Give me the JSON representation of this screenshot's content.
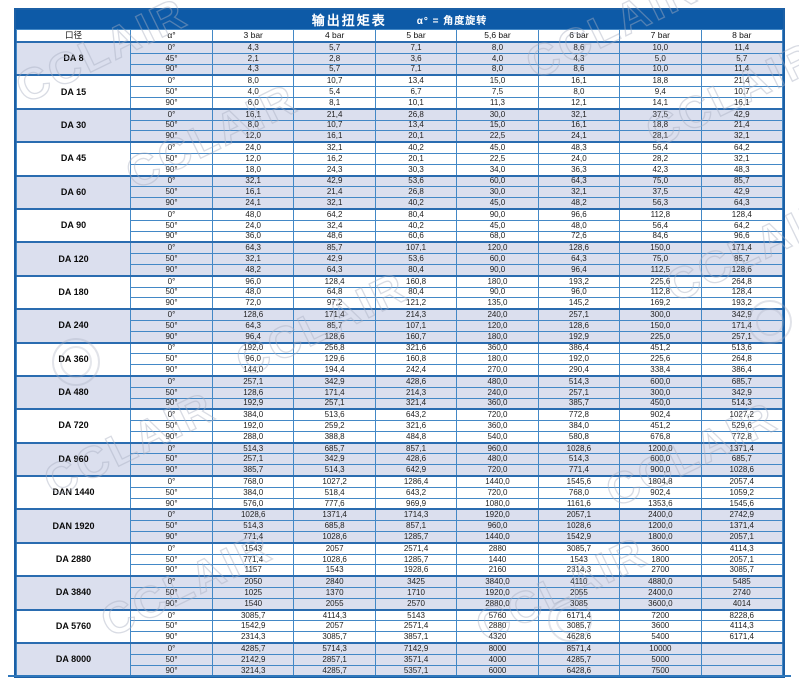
{
  "watermark": {
    "text": "CCLAIR"
  },
  "colors": {
    "title_bar_bg": "#0d5aa7",
    "outer_border": "#1b5fa5",
    "inner_border": "#4388c6",
    "shaded_row_bg": "#dbdfee",
    "title_text": "#ffffff"
  },
  "table": {
    "title": "输出扭矩表",
    "legend": "α° = 角度旋转",
    "columns": [
      "口径",
      "α°",
      "3 bar",
      "4 bar",
      "5 bar",
      "5,6 bar",
      "6 bar",
      "7 bar",
      "8 bar"
    ],
    "groups": [
      {
        "label": "DA 8",
        "rows": [
          {
            "a": "0°",
            "v": [
              "4,3",
              "5,7",
              "7,1",
              "8,0",
              "8,6",
              "10,0",
              "11,4"
            ]
          },
          {
            "a": "45°",
            "v": [
              "2,1",
              "2,8",
              "3,6",
              "4,0",
              "4,3",
              "5,0",
              "5,7"
            ]
          },
          {
            "a": "90°",
            "v": [
              "4,3",
              "5,7",
              "7,1",
              "8,0",
              "8,6",
              "10,0",
              "11,4"
            ]
          }
        ]
      },
      {
        "label": "DA 15",
        "rows": [
          {
            "a": "0°",
            "v": [
              "8,0",
              "10,7",
              "13,4",
              "15,0",
              "16,1",
              "18,8",
              "21,4"
            ]
          },
          {
            "a": "50°",
            "v": [
              "4,0",
              "5,4",
              "6,7",
              "7,5",
              "8,0",
              "9,4",
              "10,7"
            ]
          },
          {
            "a": "90°",
            "v": [
              "6,0",
              "8,1",
              "10,1",
              "11,3",
              "12,1",
              "14,1",
              "16,1"
            ]
          }
        ]
      },
      {
        "label": "DA 30",
        "rows": [
          {
            "a": "0°",
            "v": [
              "16,1",
              "21,4",
              "26,8",
              "30,0",
              "32,1",
              "37,5",
              "42,9"
            ]
          },
          {
            "a": "50°",
            "v": [
              "8,0",
              "10,7",
              "13,4",
              "15,0",
              "16,1",
              "18,8",
              "21,4"
            ]
          },
          {
            "a": "90°",
            "v": [
              "12,0",
              "16,1",
              "20,1",
              "22,5",
              "24,1",
              "28,1",
              "32,1"
            ]
          }
        ]
      },
      {
        "label": "DA 45",
        "rows": [
          {
            "a": "0°",
            "v": [
              "24,0",
              "32,1",
              "40,2",
              "45,0",
              "48,3",
              "56,4",
              "64,2"
            ]
          },
          {
            "a": "50°",
            "v": [
              "12,0",
              "16,2",
              "20,1",
              "22,5",
              "24,0",
              "28,2",
              "32,1"
            ]
          },
          {
            "a": "90°",
            "v": [
              "18,0",
              "24,3",
              "30,3",
              "34,0",
              "36,3",
              "42,3",
              "48,3"
            ]
          }
        ]
      },
      {
        "label": "DA 60",
        "rows": [
          {
            "a": "0°",
            "v": [
              "32,1",
              "42,9",
              "53,6",
              "60,0",
              "64,3",
              "75,0",
              "85,7"
            ]
          },
          {
            "a": "50°",
            "v": [
              "16,1",
              "21,4",
              "26,8",
              "30,0",
              "32,1",
              "37,5",
              "42,9"
            ]
          },
          {
            "a": "90°",
            "v": [
              "24,1",
              "32,1",
              "40,2",
              "45,0",
              "48,2",
              "56,3",
              "64,3"
            ]
          }
        ]
      },
      {
        "label": "DA 90",
        "rows": [
          {
            "a": "0°",
            "v": [
              "48,0",
              "64,2",
              "80,4",
              "90,0",
              "96,6",
              "112,8",
              "128,4"
            ]
          },
          {
            "a": "50°",
            "v": [
              "24,0",
              "32,4",
              "40,2",
              "45,0",
              "48,0",
              "56,4",
              "64,2"
            ]
          },
          {
            "a": "90°",
            "v": [
              "36,0",
              "48,6",
              "60,6",
              "68,0",
              "72,6",
              "84,6",
              "96,6"
            ]
          }
        ]
      },
      {
        "label": "DA 120",
        "rows": [
          {
            "a": "0°",
            "v": [
              "64,3",
              "85,7",
              "107,1",
              "120,0",
              "128,6",
              "150,0",
              "171,4"
            ]
          },
          {
            "a": "50°",
            "v": [
              "32,1",
              "42,9",
              "53,6",
              "60,0",
              "64,3",
              "75,0",
              "85,7"
            ]
          },
          {
            "a": "90°",
            "v": [
              "48,2",
              "64,3",
              "80,4",
              "90,0",
              "96,4",
              "112,5",
              "128,6"
            ]
          }
        ]
      },
      {
        "label": "DA 180",
        "rows": [
          {
            "a": "0°",
            "v": [
              "96,0",
              "128,4",
              "160,8",
              "180,0",
              "193,2",
              "225,6",
              "264,8"
            ]
          },
          {
            "a": "50°",
            "v": [
              "48,0",
              "64,8",
              "80,4",
              "90,0",
              "96,0",
              "112,8",
              "128,4"
            ]
          },
          {
            "a": "90°",
            "v": [
              "72,0",
              "97,2",
              "121,2",
              "135,0",
              "145,2",
              "169,2",
              "193,2"
            ]
          }
        ]
      },
      {
        "label": "DA 240",
        "rows": [
          {
            "a": "0°",
            "v": [
              "128,6",
              "171,4",
              "214,3",
              "240,0",
              "257,1",
              "300,0",
              "342,9"
            ]
          },
          {
            "a": "50°",
            "v": [
              "64,3",
              "85,7",
              "107,1",
              "120,0",
              "128,6",
              "150,0",
              "171,4"
            ]
          },
          {
            "a": "90°",
            "v": [
              "96,4",
              "128,6",
              "160,7",
              "180,0",
              "192,9",
              "225,0",
              "257,1"
            ]
          }
        ]
      },
      {
        "label": "DA 360",
        "rows": [
          {
            "a": "0°",
            "v": [
              "192,0",
              "256,8",
              "321,6",
              "360,0",
              "386,4",
              "451,2",
              "513,6"
            ]
          },
          {
            "a": "50°",
            "v": [
              "96,0",
              "129,6",
              "160,8",
              "180,0",
              "192,0",
              "225,6",
              "264,8"
            ]
          },
          {
            "a": "90°",
            "v": [
              "144,0",
              "194,4",
              "242,4",
              "270,0",
              "290,4",
              "338,4",
              "386,4"
            ]
          }
        ]
      },
      {
        "label": "DA 480",
        "rows": [
          {
            "a": "0°",
            "v": [
              "257,1",
              "342,9",
              "428,6",
              "480,0",
              "514,3",
              "600,0",
              "685,7"
            ]
          },
          {
            "a": "50°",
            "v": [
              "128,6",
              "171,4",
              "214,3",
              "240,0",
              "257,1",
              "300,0",
              "342,9"
            ]
          },
          {
            "a": "90°",
            "v": [
              "192,9",
              "257,1",
              "321,4",
              "360,0",
              "385,7",
              "450,0",
              "514,3"
            ]
          }
        ]
      },
      {
        "label": "DA 720",
        "rows": [
          {
            "a": "0°",
            "v": [
              "384,0",
              "513,6",
              "643,2",
              "720,0",
              "772,8",
              "902,4",
              "1027,2"
            ]
          },
          {
            "a": "50°",
            "v": [
              "192,0",
              "259,2",
              "321,6",
              "360,0",
              "384,0",
              "451,2",
              "529,6"
            ]
          },
          {
            "a": "90°",
            "v": [
              "288,0",
              "388,8",
              "484,8",
              "540,0",
              "580,8",
              "676,8",
              "772,8"
            ]
          }
        ]
      },
      {
        "label": "DA 960",
        "rows": [
          {
            "a": "0°",
            "v": [
              "514,3",
              "685,7",
              "857,1",
              "960,0",
              "1028,6",
              "1200,0",
              "1371,4"
            ]
          },
          {
            "a": "50°",
            "v": [
              "257,1",
              "342,9",
              "428,6",
              "480,0",
              "514,3",
              "600,0",
              "685,7"
            ]
          },
          {
            "a": "90°",
            "v": [
              "385,7",
              "514,3",
              "642,9",
              "720,0",
              "771,4",
              "900,0",
              "1028,6"
            ]
          }
        ]
      },
      {
        "label": "DAN 1440",
        "rows": [
          {
            "a": "0°",
            "v": [
              "768,0",
              "1027,2",
              "1286,4",
              "1440,0",
              "1545,6",
              "1804,8",
              "2057,4"
            ]
          },
          {
            "a": "50°",
            "v": [
              "384,0",
              "518,4",
              "643,2",
              "720,0",
              "768,0",
              "902,4",
              "1059,2"
            ]
          },
          {
            "a": "90°",
            "v": [
              "576,0",
              "777,6",
              "969,9",
              "1080,0",
              "1161,6",
              "1353,6",
              "1545,6"
            ]
          }
        ]
      },
      {
        "label": "DAN 1920",
        "rows": [
          {
            "a": "0°",
            "v": [
              "1028,6",
              "1371,4",
              "1714,3",
              "1920,0",
              "2057,1",
              "2400,0",
              "2742,9"
            ]
          },
          {
            "a": "50°",
            "v": [
              "514,3",
              "685,8",
              "857,1",
              "960,0",
              "1028,6",
              "1200,0",
              "1371,4"
            ]
          },
          {
            "a": "90°",
            "v": [
              "771,4",
              "1028,6",
              "1285,7",
              "1440,0",
              "1542,9",
              "1800,0",
              "2057,1"
            ]
          }
        ]
      },
      {
        "label": "DA 2880",
        "rows": [
          {
            "a": "0°",
            "v": [
              "1543",
              "2057",
              "2571,4",
              "2880",
              "3085,7",
              "3600",
              "4114,3"
            ]
          },
          {
            "a": "50°",
            "v": [
              "771,4",
              "1028,6",
              "1285,7",
              "1440",
              "1543",
              "1800",
              "2057,1"
            ]
          },
          {
            "a": "90°",
            "v": [
              "1157",
              "1543",
              "1928,6",
              "2160",
              "2314,3",
              "2700",
              "3085,7"
            ]
          }
        ]
      },
      {
        "label": "DA 3840",
        "rows": [
          {
            "a": "0°",
            "v": [
              "2050",
              "2840",
              "3425",
              "3840,0",
              "4110",
              "4880,0",
              "5485"
            ]
          },
          {
            "a": "50°",
            "v": [
              "1025",
              "1370",
              "1710",
              "1920,0",
              "2055",
              "2400,0",
              "2740"
            ]
          },
          {
            "a": "90°",
            "v": [
              "1540",
              "2055",
              "2570",
              "2880,0",
              "3085",
              "3600,0",
              "4014"
            ]
          }
        ]
      },
      {
        "label": "DA 5760",
        "rows": [
          {
            "a": "0°",
            "v": [
              "3085,7",
              "4114,3",
              "5143",
              "5760",
              "6171,4",
              "7200",
              "8228,6"
            ]
          },
          {
            "a": "50°",
            "v": [
              "1542,9",
              "2057",
              "2571,4",
              "2880",
              "3085,7",
              "3600",
              "4114,3"
            ]
          },
          {
            "a": "90°",
            "v": [
              "2314,3",
              "3085,7",
              "3857,1",
              "4320",
              "4628,6",
              "5400",
              "6171,4"
            ]
          }
        ]
      },
      {
        "label": "DA 8000",
        "rows": [
          {
            "a": "0°",
            "v": [
              "4285,7",
              "5714,3",
              "7142,9",
              "8000",
              "8571,4",
              "10000",
              ""
            ]
          },
          {
            "a": "50°",
            "v": [
              "2142,9",
              "2857,1",
              "3571,4",
              "4000",
              "4285,7",
              "5000",
              ""
            ]
          },
          {
            "a": "90°",
            "v": [
              "3214,3",
              "4285,7",
              "5357,1",
              "6000",
              "6428,6",
              "7500",
              ""
            ]
          }
        ]
      }
    ]
  }
}
